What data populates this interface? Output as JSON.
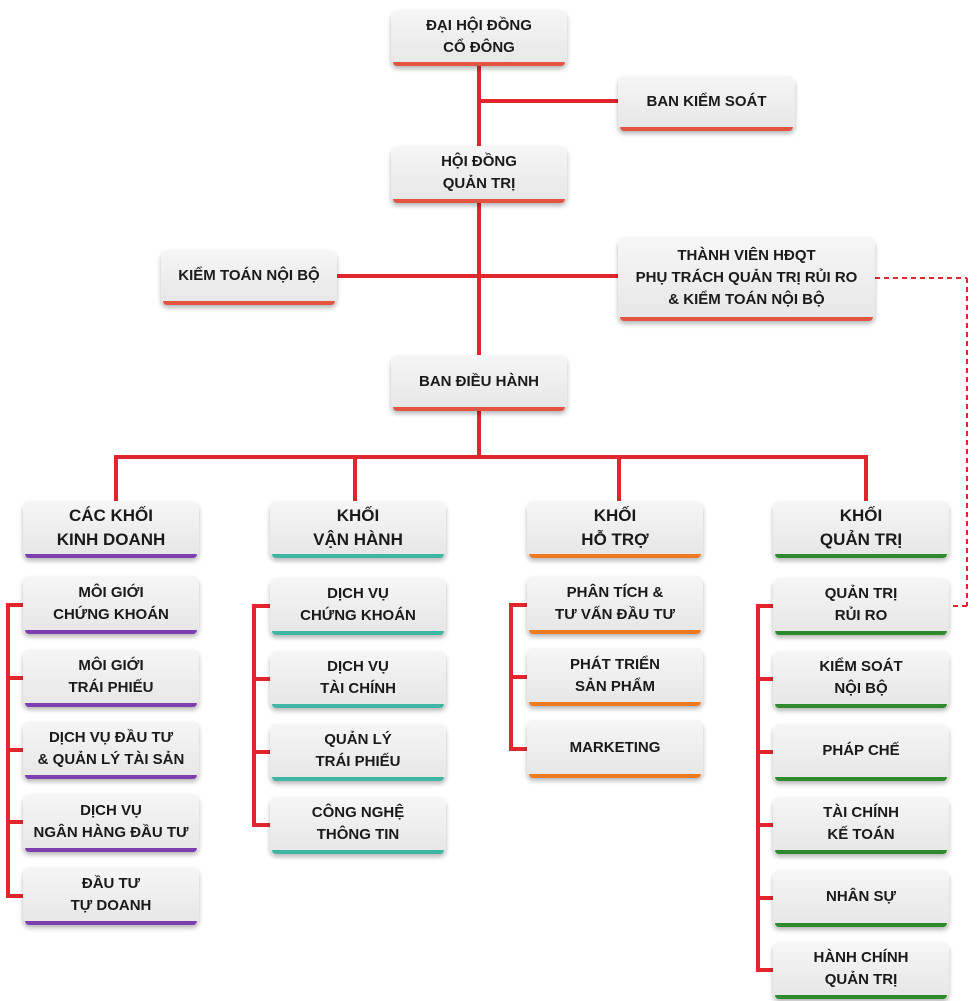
{
  "colors": {
    "line": "#e3262e",
    "bar_red": "#e45443",
    "bar_purple": "#7b3fb0",
    "bar_teal": "#3fb6a4",
    "bar_orange": "#f07a22",
    "bar_green": "#2f8a2f"
  },
  "nodes": {
    "shareholders": "ĐẠI HỘI ĐỒNG\nCỔ ĐÔNG",
    "supervisory_board": "BAN KIỂM SOÁT",
    "board_of_directors": "HỘI ĐỒNG\nQUẢN TRỊ",
    "internal_audit": "KIỂM TOÁN NỘI BỘ",
    "risk_member": "THÀNH VIÊN HĐQT\nPHỤ TRÁCH QUẢN TRỊ RỦI RO\n& KIỂM TOÁN NỘI BỘ",
    "executive_board": "BAN ĐIỀU HÀNH"
  },
  "blocks": {
    "business": {
      "title": "CÁC KHỐI\nKINH DOANH",
      "items": [
        "MÔI GIỚI\nCHỨNG KHOÁN",
        "MÔI GIỚI\nTRÁI PHIẾU",
        "DỊCH VỤ ĐẦU TƯ\n& QUẢN LÝ TÀI SẢN",
        "DỊCH VỤ\nNGÂN HÀNG ĐẦU TƯ",
        "ĐẦU TƯ\nTỰ DOANH"
      ]
    },
    "operations": {
      "title": "KHỐI\nVẬN HÀNH",
      "items": [
        "DỊCH VỤ\nCHỨNG KHOÁN",
        "DỊCH VỤ\nTÀI CHÍNH",
        "QUẢN LÝ\nTRÁI PHIẾU",
        "CÔNG NGHỆ\nTHÔNG TIN"
      ]
    },
    "support": {
      "title": "KHỐI\nHỖ TRỢ",
      "items": [
        "PHÂN TÍCH &\nTƯ VẤN ĐẦU TƯ",
        "PHÁT TRIỂN\nSẢN PHẨM",
        "MARKETING"
      ]
    },
    "management": {
      "title": "KHỐI\nQUẢN TRỊ",
      "items": [
        "QUẢN TRỊ\nRỦI RO",
        "KIỂM SOÁT\nNỘI BỘ",
        "PHÁP CHẾ",
        "TÀI CHÍNH\nKẾ TOÁN",
        "NHÂN SỰ",
        "HÀNH CHÍNH\nQUẢN TRỊ"
      ]
    }
  }
}
